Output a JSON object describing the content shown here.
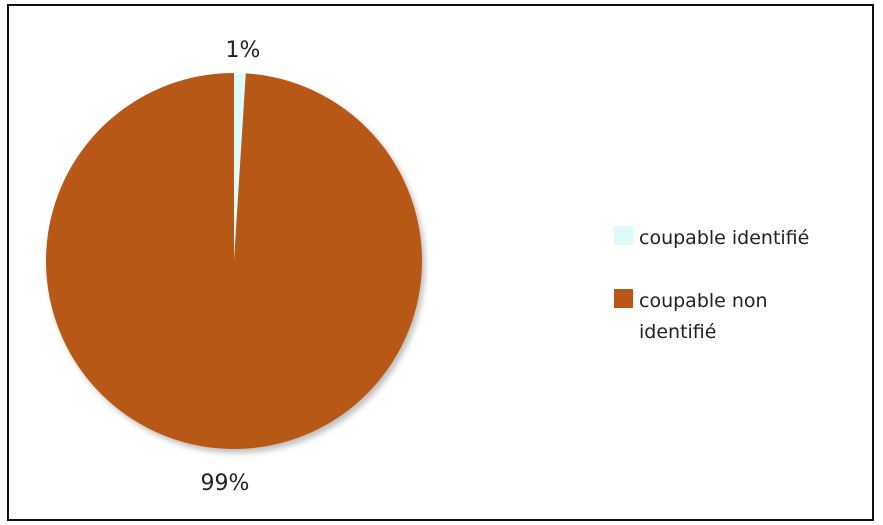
{
  "chart_data": {
    "type": "pie",
    "title": "",
    "categories": [
      "coupable identifié",
      "coupable non identifié"
    ],
    "values": [
      1,
      99
    ],
    "labels": [
      "1%",
      "99%"
    ],
    "colors": [
      "#ddfbfb",
      "#b85814"
    ],
    "legend_position": "right",
    "legend": [
      {
        "lines": [
          "coupable identifié"
        ]
      },
      {
        "lines": [
          "coupable non",
          "identifié"
        ]
      }
    ]
  }
}
